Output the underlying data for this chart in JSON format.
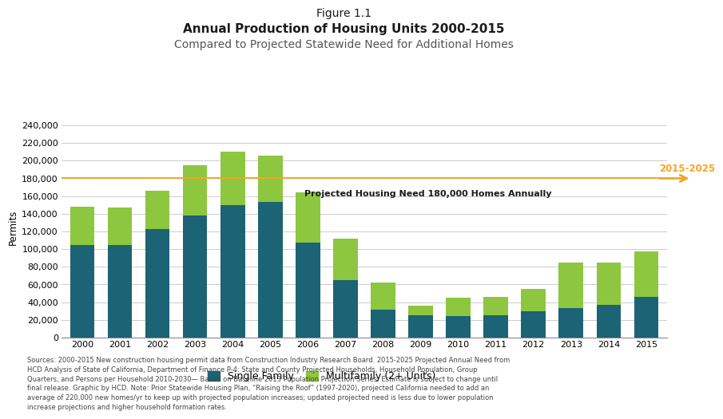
{
  "title_line1": "Figure 1.1",
  "title_line2": "Annual Production of Housing Units 2000-2015",
  "title_line3": "Compared to Projected Statewide Need for Additional Homes",
  "years": [
    2000,
    2001,
    2002,
    2003,
    2004,
    2005,
    2006,
    2007,
    2008,
    2009,
    2010,
    2011,
    2012,
    2013,
    2014,
    2015
  ],
  "single_family": [
    105000,
    105000,
    123000,
    138000,
    150000,
    153000,
    107000,
    65000,
    32000,
    25000,
    24000,
    25000,
    30000,
    33000,
    37000,
    46000
  ],
  "multifamily": [
    43000,
    42000,
    43000,
    57000,
    60000,
    53000,
    57000,
    47000,
    30000,
    11000,
    21000,
    21000,
    25000,
    52000,
    48000,
    51000
  ],
  "single_family_color": "#1b6375",
  "multifamily_color": "#8dc63f",
  "projected_need": 180000,
  "projected_need_label": "Projected Housing Need 180,000 Homes Annually",
  "arrow_label": "2015-2025",
  "arrow_color": "#f5a623",
  "ylim": [
    0,
    250000
  ],
  "yticks": [
    0,
    20000,
    40000,
    60000,
    80000,
    100000,
    120000,
    140000,
    160000,
    180000,
    200000,
    220000,
    240000
  ],
  "ylabel": "Permits",
  "legend_sf": "Single Family",
  "legend_mf": "Multifamily (2+ Units)",
  "source_text": "Sources: 2000-2015 New construction housing permit data from Construction Industry Research Board. 2015-2025 Projected Annual Need from\nHCD Analysis of State of California, Department of Finance P-4: State and County Projected Households, Household Population, Group\nQuarters, and Persons per Household 2010-2030— Based on Baseline 2013 Population Projection Series. Estimate is subject to change until\nfinal release. Graphic by HCD. Note: Prior Statewide Housing Plan, “Raising the Roof” (1997-2020), projected California needed to add an\naverage of 220,000 new homes/yr to keep up with projected population increases; updated projected need is less due to lower population\nincrease projections and higher household formation rates.",
  "bg_color": "#ffffff",
  "grid_color": "#cccccc"
}
